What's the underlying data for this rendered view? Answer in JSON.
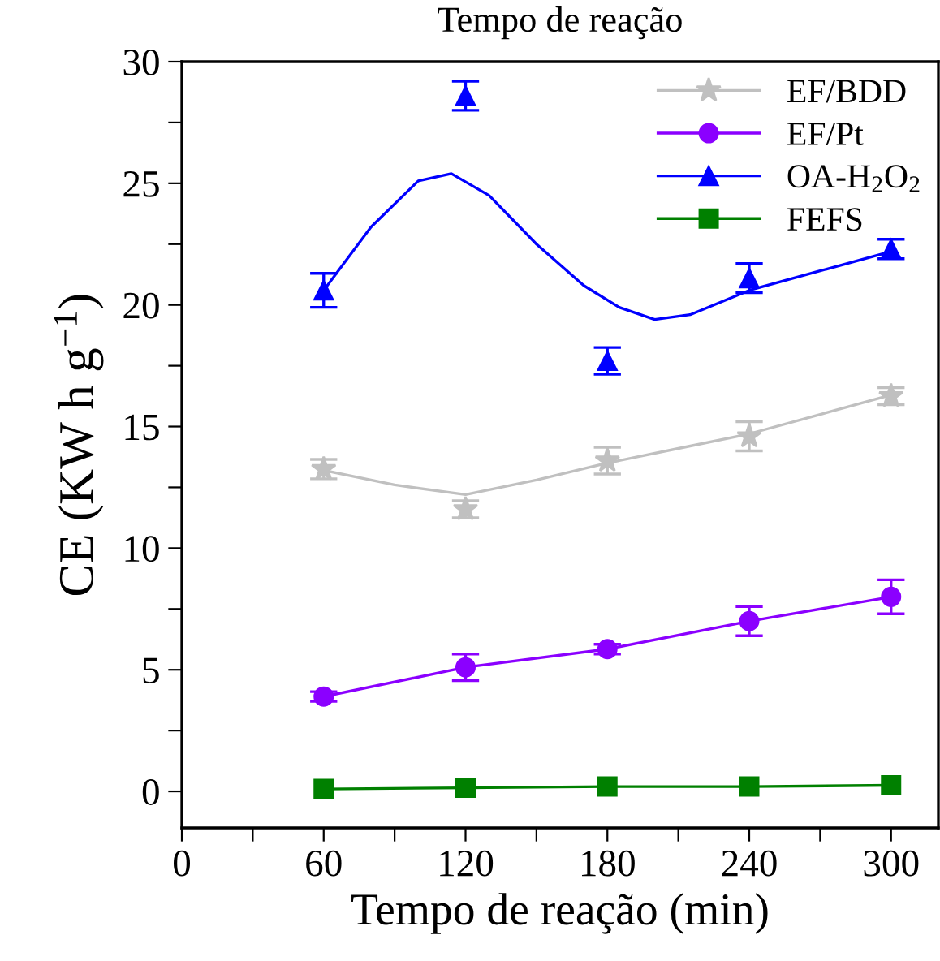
{
  "chart_data": {
    "type": "line",
    "title": "Tempo de reação",
    "xlabel": "Tempo de reação (min)",
    "ylabel": "CE (KW h g$^{−1}$)",
    "x": [
      60,
      120,
      180,
      240,
      300
    ],
    "xlim": [
      0,
      320
    ],
    "xticks": [
      0,
      {
        "value": 30,
        "label": null
      },
      60,
      {
        "value": 90,
        "label": null
      },
      120,
      {
        "value": 150,
        "label": null
      },
      180,
      {
        "value": 210,
        "label": null
      },
      240,
      {
        "value": 270,
        "label": null
      },
      300
    ],
    "ylim": [
      -1.5,
      30
    ],
    "yticks": [
      0,
      {
        "value": 2.5,
        "label": null
      },
      5,
      {
        "value": 7.5,
        "label": null
      },
      10,
      {
        "value": 12.5,
        "label": null
      },
      15,
      {
        "value": 17.5,
        "label": null
      },
      20,
      {
        "value": 22.5,
        "label": null
      },
      25,
      {
        "value": 27.5,
        "label": null
      },
      30
    ],
    "grid": false,
    "legend": "top right",
    "series": [
      {
        "name": "EF/BDD",
        "type": "scatter",
        "marker": "star",
        "color": "#c0c0c0",
        "values": [
          13.25,
          11.6,
          13.6,
          14.6,
          16.25
        ],
        "errors": [
          0.4,
          0.35,
          0.55,
          0.6,
          0.35
        ]
      },
      {
        "name": "EF/Pt",
        "marker": "circle",
        "color": "#8b00ff",
        "values": [
          3.9,
          5.1,
          5.85,
          7.0,
          8.0
        ],
        "errors": [
          0.2,
          0.55,
          0.2,
          0.6,
          0.7
        ]
      },
      {
        "name": "OA-H$_{2}$O$_{2}$",
        "type": "scatter",
        "marker": "triangle",
        "color": "#0000ff",
        "values": [
          20.6,
          28.6,
          17.7,
          21.1,
          22.3
        ],
        "errors": [
          0.7,
          0.6,
          0.55,
          0.6,
          0.4
        ]
      },
      {
        "name": "FEFS",
        "marker": "square",
        "color": "#008000",
        "values": [
          0.1,
          0.15,
          0.2,
          0.2,
          0.25
        ],
        "errors": [
          null,
          null,
          null,
          null,
          null
        ]
      },
      {
        "type": "line",
        "marker": "none",
        "color": "#c0c0c0",
        "x": [
          60,
          90,
          120,
          150,
          180,
          210,
          240,
          270,
          300
        ],
        "values": [
          13.2,
          12.6,
          12.2,
          12.8,
          13.5,
          14.1,
          14.7,
          15.5,
          16.3
        ]
      },
      {
        "type": "line",
        "marker": "none",
        "color": "#0000ff",
        "x": [
          60,
          80,
          100,
          114,
          130,
          150,
          170,
          185,
          200,
          215,
          240,
          270,
          300
        ],
        "values": [
          20.6,
          23.2,
          25.1,
          25.4,
          24.5,
          22.5,
          20.8,
          19.9,
          19.4,
          19.6,
          20.6,
          21.4,
          22.2
        ]
      }
    ]
  }
}
